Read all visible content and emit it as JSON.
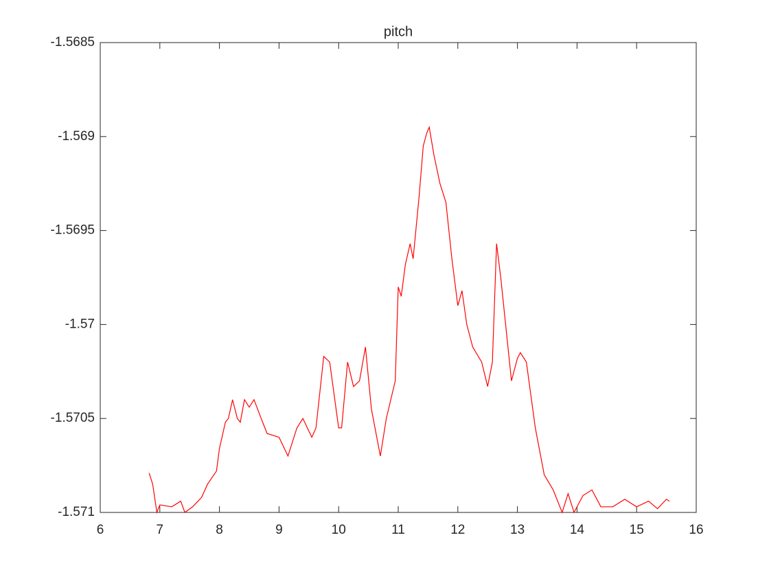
{
  "chart_data": {
    "type": "line",
    "title": "pitch",
    "color": "#ff0000",
    "x": [
      6.82,
      6.88,
      6.95,
      7.0,
      7.2,
      7.35,
      7.42,
      7.55,
      7.7,
      7.8,
      7.95,
      8.0,
      8.1,
      8.15,
      8.22,
      8.3,
      8.35,
      8.42,
      8.5,
      8.58,
      8.7,
      8.8,
      9.0,
      9.15,
      9.3,
      9.4,
      9.55,
      9.62,
      9.75,
      9.85,
      10.0,
      10.05,
      10.15,
      10.25,
      10.35,
      10.45,
      10.55,
      10.7,
      10.8,
      10.95,
      11.0,
      11.05,
      11.12,
      11.2,
      11.25,
      11.35,
      11.42,
      11.48,
      11.52,
      11.6,
      11.7,
      11.8,
      11.9,
      12.0,
      12.07,
      12.15,
      12.25,
      12.4,
      12.5,
      12.58,
      12.65,
      12.72,
      12.9,
      13.0,
      13.05,
      13.15,
      13.3,
      13.45,
      13.6,
      13.75,
      13.85,
      13.95,
      14.1,
      14.25,
      14.4,
      14.6,
      14.8,
      15.0,
      15.2,
      15.35,
      15.5,
      15.55
    ],
    "values": [
      -1.57079,
      -1.57085,
      -1.571,
      -1.57096,
      -1.57097,
      -1.57094,
      -1.571,
      -1.57097,
      -1.57092,
      -1.57085,
      -1.57078,
      -1.57066,
      -1.57052,
      -1.5705,
      -1.5704,
      -1.5705,
      -1.57052,
      -1.5704,
      -1.57044,
      -1.5704,
      -1.5705,
      -1.57058,
      -1.5706,
      -1.5707,
      -1.57055,
      -1.5705,
      -1.5706,
      -1.57055,
      -1.57017,
      -1.5702,
      -1.57055,
      -1.57055,
      -1.5702,
      -1.57033,
      -1.5703,
      -1.57012,
      -1.57045,
      -1.5707,
      -1.5705,
      -1.5703,
      -1.5698,
      -1.56985,
      -1.56968,
      -1.56957,
      -1.56965,
      -1.56932,
      -1.56905,
      -1.56898,
      -1.56895,
      -1.5691,
      -1.56925,
      -1.56935,
      -1.56965,
      -1.5699,
      -1.56982,
      -1.57,
      -1.57012,
      -1.5702,
      -1.57033,
      -1.5702,
      -1.56957,
      -1.56975,
      -1.5703,
      -1.57018,
      -1.57015,
      -1.5702,
      -1.57055,
      -1.5708,
      -1.57088,
      -1.571,
      -1.5709,
      -1.571,
      -1.57091,
      -1.57088,
      -1.57097,
      -1.57097,
      -1.57093,
      -1.57097,
      -1.57094,
      -1.57098,
      -1.57093,
      -1.57094
    ],
    "xlim": [
      6,
      16
    ],
    "xticks": [
      6,
      7,
      8,
      9,
      10,
      11,
      12,
      13,
      14,
      15,
      16
    ],
    "ylim": [
      -1.571,
      -1.5685
    ],
    "yticks": [
      -1.571,
      -1.5705,
      -1.57,
      -1.5695,
      -1.569,
      -1.5685
    ]
  }
}
